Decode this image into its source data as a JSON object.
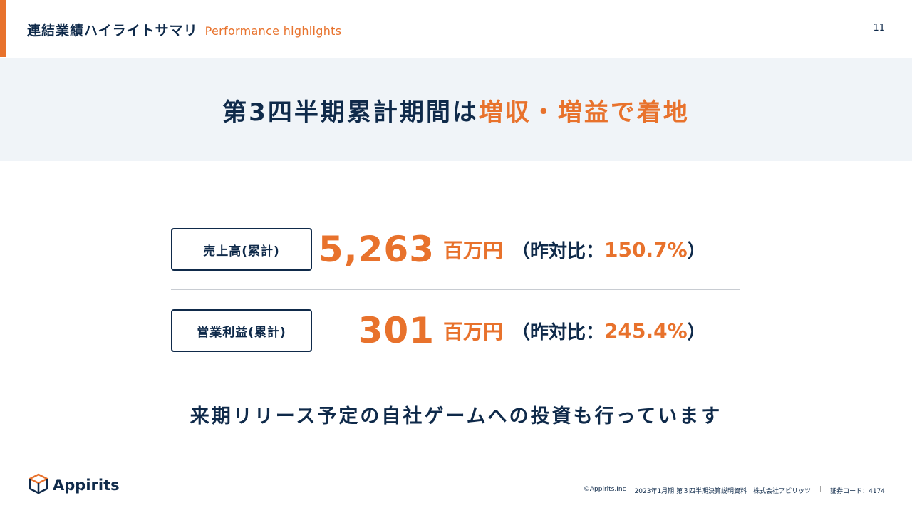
{
  "header": {
    "title_jp": "連結業績ハイライトサマリ",
    "title_en": "Performance highlights",
    "page_number": "11"
  },
  "banner": {
    "prefix": "第3四半期累計期間は",
    "highlight": "増収・増益で着地"
  },
  "kpis": [
    {
      "label": "売上高(累計)",
      "value": "5,263",
      "unit": "百万円",
      "paren_open": "（",
      "yoy_label": "昨対比：",
      "yoy_value": "150.7%",
      "paren_close": "）"
    },
    {
      "label": "営業利益(累計)",
      "value": "301",
      "unit": "百万円",
      "paren_open": "（",
      "yoy_label": "昨対比：",
      "yoy_value": "245.4%",
      "paren_close": "）"
    }
  ],
  "note": "来期リリース予定の自社ゲームへの投資も行っています",
  "logo": {
    "text": "Appirits",
    "icon": "box-logo-icon"
  },
  "footer": {
    "copyright": "©Appirits.Inc",
    "doc": "2023年1月期 第３四半期決算説明資料　株式会社アピリッツ",
    "separator": "|",
    "code": "証券コード：4174"
  },
  "colors": {
    "accent": "#e8722c",
    "navy": "#0f2a4a",
    "banner_bg": "#f0f4f8"
  }
}
